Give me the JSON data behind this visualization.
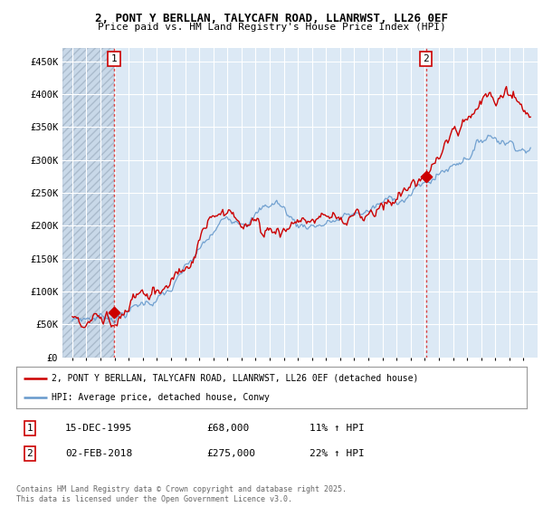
{
  "title": "2, PONT Y BERLLAN, TALYCAFN ROAD, LLANRWST, LL26 0EF",
  "subtitle": "Price paid vs. HM Land Registry's House Price Index (HPI)",
  "ylim": [
    0,
    470000
  ],
  "yticks": [
    0,
    50000,
    100000,
    150000,
    200000,
    250000,
    300000,
    350000,
    400000,
    450000
  ],
  "ytick_labels": [
    "£0",
    "£50K",
    "£100K",
    "£150K",
    "£200K",
    "£250K",
    "£300K",
    "£350K",
    "£400K",
    "£450K"
  ],
  "background_color": "#ffffff",
  "plot_bg_color": "#dce9f5",
  "hatch_bg_color": "#c8d8e8",
  "grid_color": "#ffffff",
  "property_color": "#cc0000",
  "hpi_color": "#6699cc",
  "annotation1_date": "15-DEC-1995",
  "annotation1_price": "£68,000",
  "annotation1_hpi": "11% ↑ HPI",
  "annotation2_date": "02-FEB-2018",
  "annotation2_price": "£275,000",
  "annotation2_hpi": "22% ↑ HPI",
  "legend_label1": "2, PONT Y BERLLAN, TALYCAFN ROAD, LLANRWST, LL26 0EF (detached house)",
  "legend_label2": "HPI: Average price, detached house, Conwy",
  "footer": "Contains HM Land Registry data © Crown copyright and database right 2025.\nThis data is licensed under the Open Government Licence v3.0.",
  "sale1_x": 1995.96,
  "sale1_y": 68000,
  "sale2_x": 2018.09,
  "sale2_y": 275000,
  "xmin": 1993,
  "xmax": 2025
}
